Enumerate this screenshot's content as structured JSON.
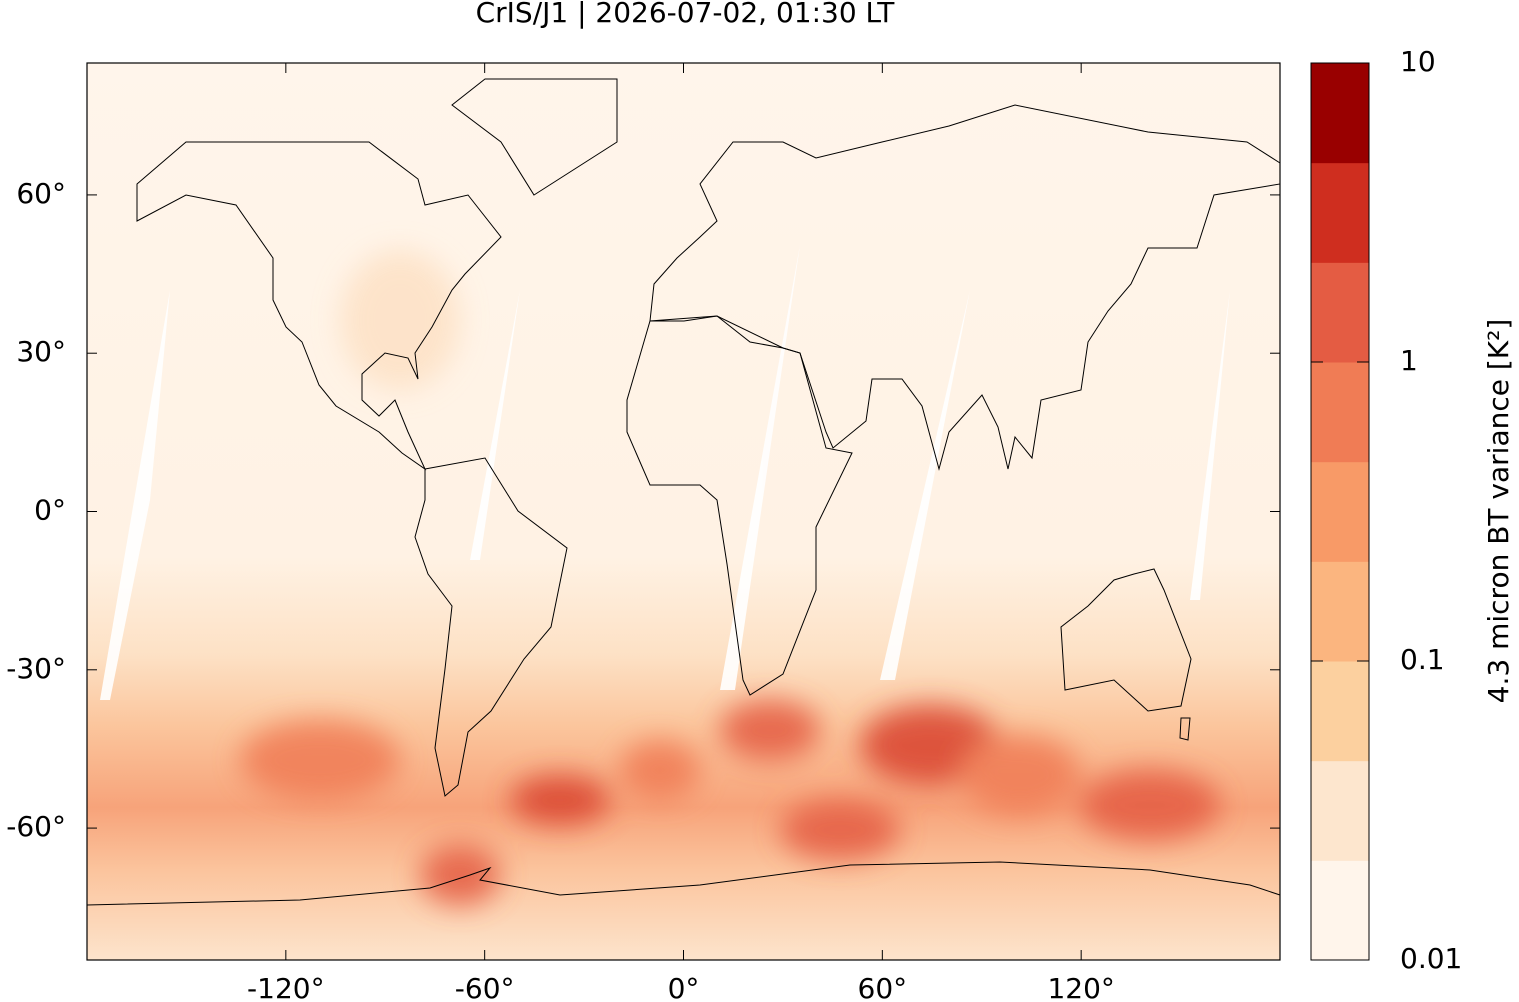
{
  "chart_data": {
    "type": "map",
    "title": "CrIS/J1 | 2026-07-02, 01:30 LT",
    "xlim": [
      -180,
      180
    ],
    "ylim": [
      -85,
      85
    ],
    "xticks": [
      {
        "value": -120,
        "label": "-120°"
      },
      {
        "value": -60,
        "label": "-60°"
      },
      {
        "value": 0,
        "label": "0°"
      },
      {
        "value": 60,
        "label": "60°"
      },
      {
        "value": 120,
        "label": "120°"
      }
    ],
    "yticks": [
      {
        "value": 60,
        "label": "60°"
      },
      {
        "value": 30,
        "label": "30°"
      },
      {
        "value": 0,
        "label": "0°"
      },
      {
        "value": -30,
        "label": "-30°"
      },
      {
        "value": -60,
        "label": "-60°"
      }
    ],
    "colorbar": {
      "label": "4.3 micron BT variance [K²]",
      "lim": [
        0.01,
        10
      ],
      "ticks": [
        0.01,
        0.1,
        1,
        10
      ],
      "log": true,
      "colors": [
        "#fff5eb",
        "#fde6ce",
        "#fcd09f",
        "#fbb57f",
        "#f89a67",
        "#f07c55",
        "#e45c43",
        "#cf2e1f",
        "#990000"
      ]
    }
  }
}
